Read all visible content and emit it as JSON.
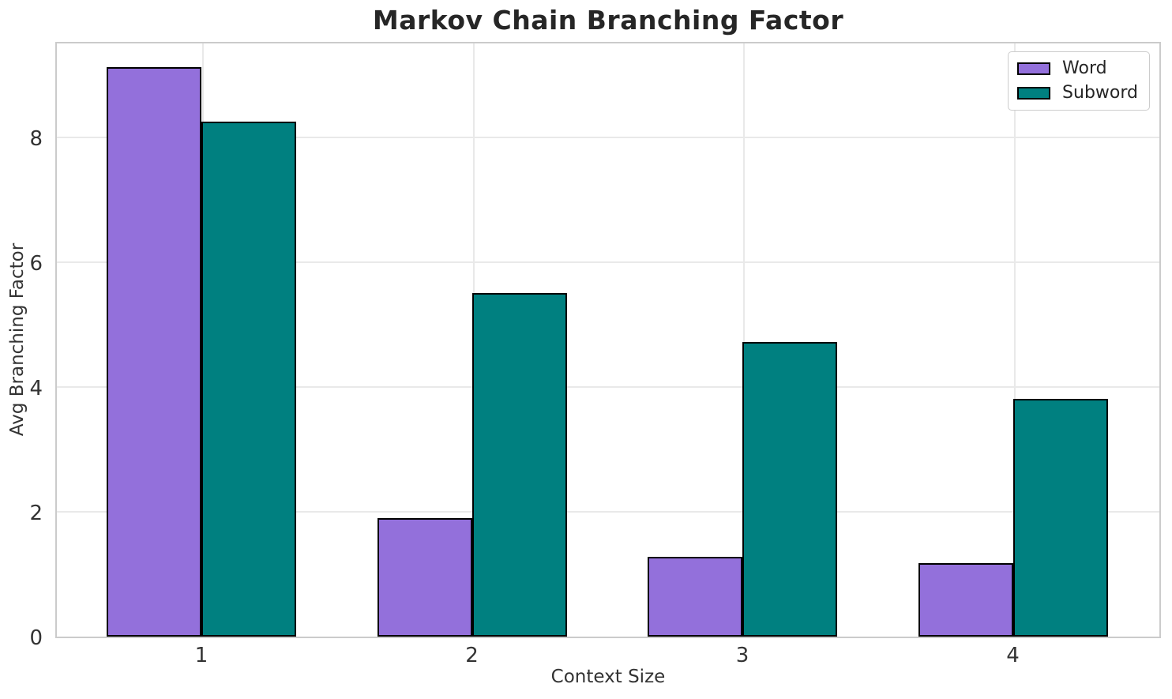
{
  "chart_data": {
    "type": "bar",
    "title": "Markov Chain Branching Factor",
    "xlabel": "Context Size",
    "ylabel": "Avg Branching Factor",
    "categories": [
      "1",
      "2",
      "3",
      "4"
    ],
    "series": [
      {
        "name": "Word",
        "color": "#9370DB",
        "values": [
          9.13,
          1.9,
          1.28,
          1.18
        ]
      },
      {
        "name": "Subword",
        "color": "#008080",
        "values": [
          8.25,
          5.51,
          4.72,
          3.81
        ]
      }
    ],
    "ylim": [
      0,
      9.56
    ],
    "yticks": [
      0,
      2,
      4,
      6,
      8
    ],
    "grid": true,
    "legend_position": "upper right",
    "bar_edge_color": "#000000",
    "colors": {
      "title_text": "#262626",
      "tick_text": "#333333",
      "spine": "#cbcbcb",
      "gridline": "#e9e9e9",
      "background": "#ffffff"
    }
  }
}
